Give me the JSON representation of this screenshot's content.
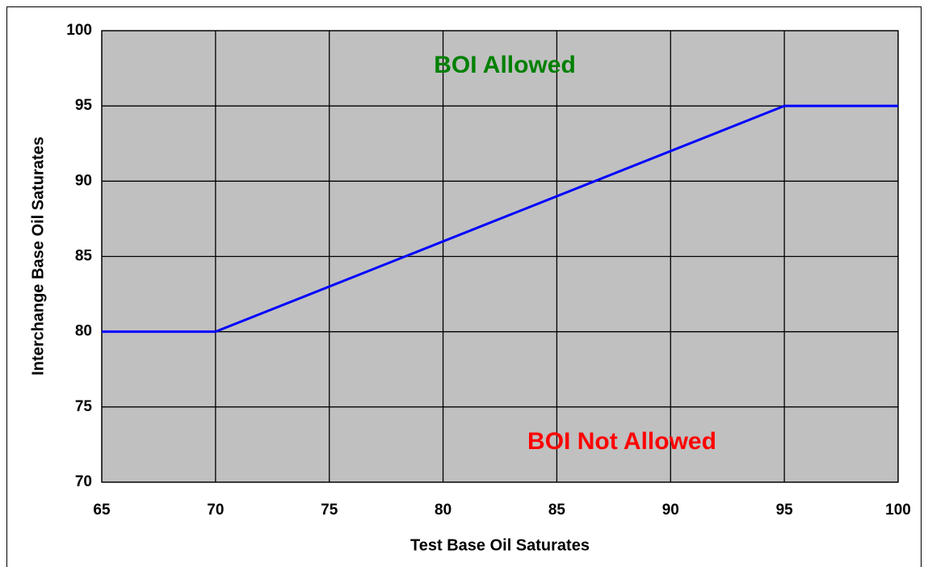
{
  "chart_data": {
    "type": "line",
    "x_label": "Test Base Oil Saturates",
    "y_label": "Interchange Base Oil Saturates",
    "x": [
      65,
      70,
      95,
      100
    ],
    "series": [
      {
        "color": "#0000ff",
        "values": [
          80,
          80,
          95,
          95
        ]
      }
    ],
    "xlim": [
      65,
      100
    ],
    "xticks": [
      65,
      70,
      75,
      80,
      85,
      90,
      95,
      100
    ],
    "ylim": [
      70,
      100
    ],
    "yticks": [
      70,
      75,
      80,
      85,
      90,
      95,
      100
    ],
    "grid": true,
    "annotations": [
      {
        "text": "BOI Allowed",
        "color": "#008000"
      },
      {
        "text": "BOI Not Allowed",
        "color": "#ff0000"
      }
    ]
  }
}
